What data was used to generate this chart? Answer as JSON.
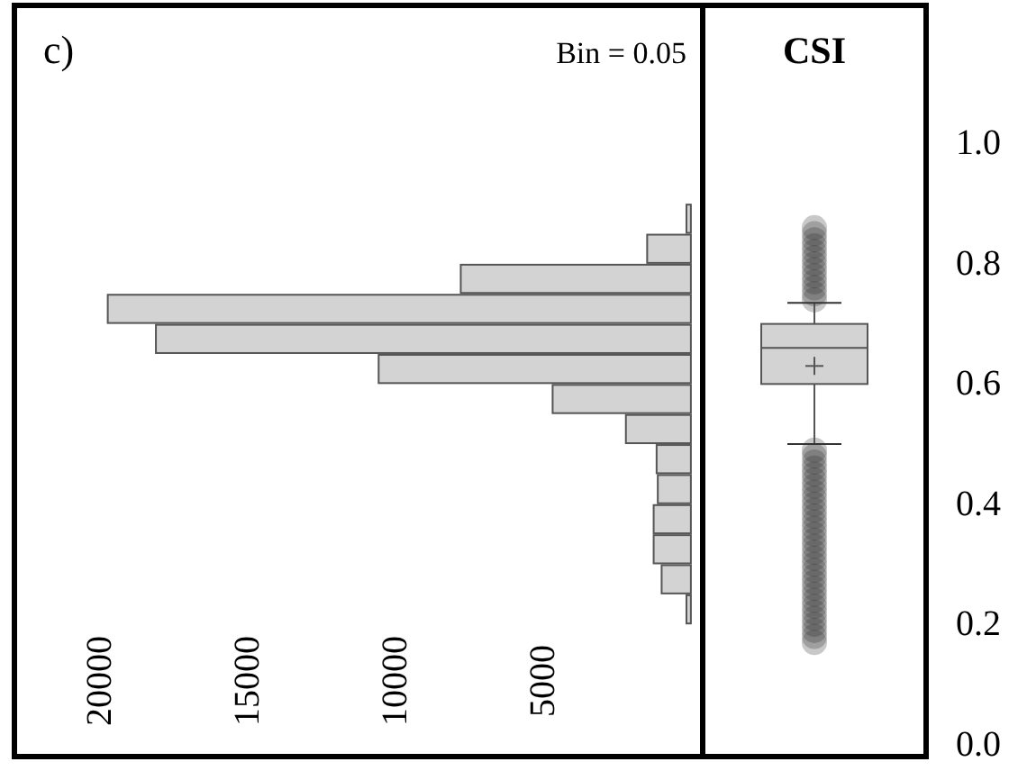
{
  "chart_data": [
    {
      "type": "histogram",
      "orientation": "horizontal",
      "bins": [
        0.2,
        0.25,
        0.3,
        0.35,
        0.4,
        0.45,
        0.5,
        0.55,
        0.6,
        0.65,
        0.7,
        0.75,
        0.8,
        0.85,
        0.9
      ],
      "values": [
        150,
        990,
        1260,
        1260,
        1120,
        1160,
        2200,
        4680,
        10570,
        18110,
        19740,
        7790,
        1480,
        150
      ],
      "color": "#d3d3d3",
      "xlim": [
        22900,
        -400
      ],
      "xticks": [
        20000,
        15000,
        10000,
        5000
      ],
      "ylim": [
        -0.02,
        1.23
      ],
      "tick_labels": "x",
      "annotations": [
        "c)",
        "Bin = 0.05"
      ]
    },
    {
      "type": "box",
      "categories": [
        "CSI"
      ],
      "color": "#d3d3d3",
      "boxes": [
        {
          "low": 0.5,
          "q1": 0.6,
          "median": 0.66,
          "q3": 0.7,
          "high": 0.735,
          "mean": 0.63,
          "outliers": [
            0.74,
            0.75,
            0.76,
            0.77,
            0.78,
            0.79,
            0.8,
            0.81,
            0.82,
            0.83,
            0.84,
            0.85,
            0.86,
            0.17,
            0.18,
            0.19,
            0.2,
            0.21,
            0.22,
            0.23,
            0.24,
            0.25,
            0.26,
            0.27,
            0.28,
            0.29,
            0.3,
            0.31,
            0.32,
            0.33,
            0.34,
            0.35,
            0.36,
            0.37,
            0.38,
            0.39,
            0.4,
            0.41,
            0.42,
            0.43,
            0.44,
            0.45,
            0.46,
            0.47,
            0.48,
            0.49
          ]
        }
      ],
      "ylim": [
        -0.02,
        1.23
      ],
      "yticks": [
        {
          "value": 0,
          "label": "0.0"
        },
        0.2,
        0.4,
        0.6,
        0.8,
        {
          "value": 1,
          "label": "1.0"
        }
      ],
      "tick_labels": "y"
    }
  ]
}
